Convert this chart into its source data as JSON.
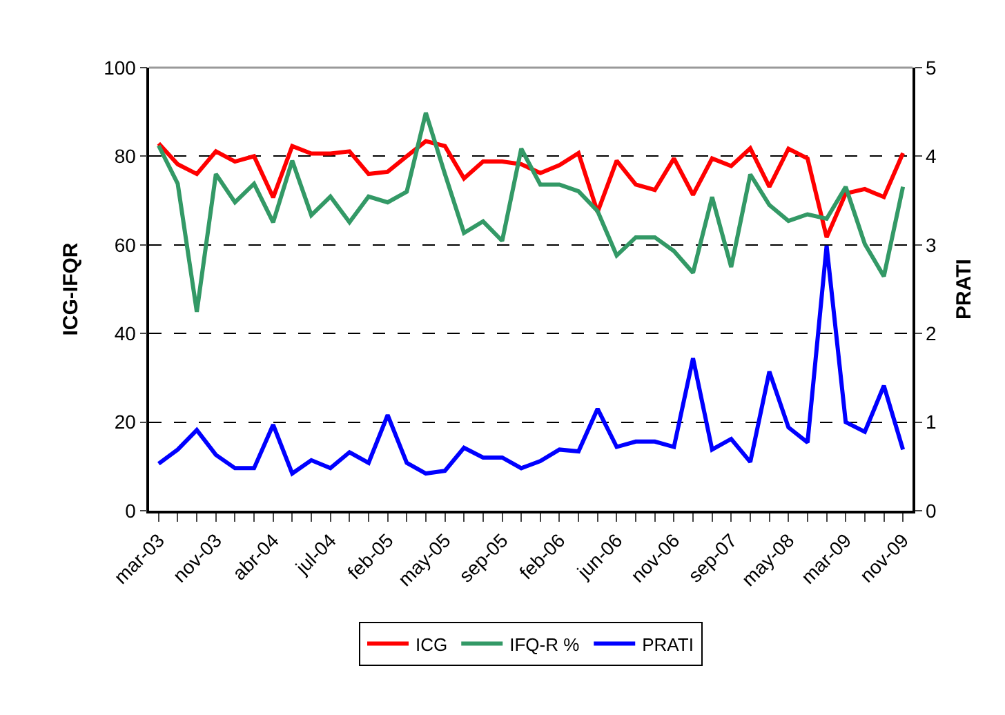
{
  "chart_data": {
    "type": "line",
    "categories": [
      "mar-03",
      null,
      null,
      "nov-03",
      null,
      null,
      "abr-04",
      null,
      null,
      "jul-04",
      null,
      null,
      "feb-05",
      null,
      null,
      "may-05",
      null,
      null,
      "sep-05",
      null,
      null,
      "feb-06",
      null,
      null,
      "jun-06",
      null,
      null,
      "nov-06",
      null,
      null,
      "sep-07",
      null,
      null,
      "may-08",
      null,
      null,
      "mar-09",
      null,
      null,
      "nov-09"
    ],
    "ylabel": "ICG-IFQR",
    "y2label": "PRATI",
    "ylim": [
      0,
      100
    ],
    "yticks": [
      0,
      20,
      40,
      60,
      80,
      100
    ],
    "y2lim": [
      0,
      5
    ],
    "y2ticks": [
      0,
      1,
      2,
      3,
      4,
      5
    ],
    "grid": "y",
    "legend": "bottom",
    "marker": "none",
    "line_style": "solid",
    "series": [
      {
        "name": "ICG",
        "color": "#ff0000",
        "values": [
          82.9,
          78.2,
          76.0,
          81.1,
          78.8,
          80.0,
          70.7,
          82.3,
          80.6,
          80.6,
          81.1,
          76.0,
          76.5,
          80.0,
          83.4,
          82.3,
          75.0,
          78.8,
          78.8,
          78.2,
          76.2,
          78.0,
          80.7,
          67.4,
          79.0,
          73.6,
          72.4,
          79.5,
          71.3,
          79.5,
          77.8,
          81.8,
          73.1,
          81.7,
          79.5,
          61.7,
          71.6,
          72.6,
          70.8,
          80.7
        ]
      },
      {
        "name": "IFQ-R %",
        "color": "#339966",
        "values": [
          82.4,
          73.8,
          44.9,
          76.0,
          69.6,
          73.8,
          65.1,
          79.0,
          66.7,
          70.9,
          65.1,
          70.9,
          69.6,
          72.0,
          89.8,
          76.0,
          62.7,
          65.3,
          60.9,
          81.7,
          73.6,
          73.6,
          72.1,
          67.6,
          57.6,
          61.7,
          61.7,
          58.6,
          53.7,
          70.8,
          55.0,
          75.9,
          69.0,
          65.4,
          66.9,
          65.9,
          73.1,
          60.2,
          52.9,
          73.1
        ]
      },
      {
        "name": "PRATI",
        "color": "#0000ff",
        "axis": "y2",
        "values": [
          0.53,
          0.69,
          0.91,
          0.63,
          0.48,
          0.48,
          0.97,
          0.42,
          0.57,
          0.48,
          0.66,
          0.54,
          1.08,
          0.54,
          0.42,
          0.45,
          0.71,
          0.6,
          0.6,
          0.48,
          0.56,
          0.69,
          0.67,
          1.15,
          0.72,
          0.78,
          0.78,
          0.72,
          1.72,
          0.69,
          0.81,
          0.55,
          1.57,
          0.94,
          0.77,
          2.99,
          1.0,
          0.89,
          1.41,
          0.69
        ]
      }
    ]
  }
}
